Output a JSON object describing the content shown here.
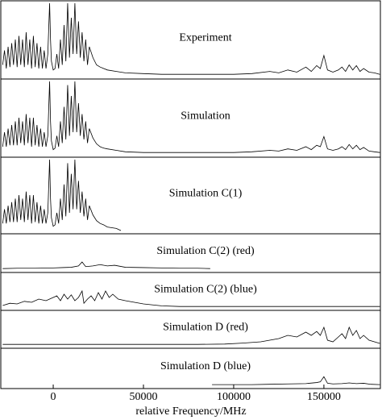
{
  "chart_data": [
    {
      "type": "line",
      "title": "Experiment",
      "color": "#000000",
      "xlim": [
        -28600,
        181300
      ],
      "ylim": [
        0,
        1
      ],
      "x": [
        -28000,
        -27000,
        -26000,
        -25000,
        -24000,
        -23000,
        -22000,
        -21000,
        -20000,
        -19000,
        -18000,
        -17000,
        -16000,
        -15000,
        -14000,
        -13000,
        -12000,
        -11000,
        -10000,
        -9000,
        -8000,
        -7000,
        -6000,
        -5000,
        -4000,
        -3000,
        -2000,
        -1500,
        -1000,
        0,
        1000,
        2000,
        3000,
        4000,
        5000,
        6000,
        7000,
        8000,
        9000,
        10000,
        11000,
        12000,
        13000,
        14000,
        15000,
        16000,
        17000,
        18000,
        19000,
        20000,
        22000,
        24000,
        26000,
        28000,
        30000,
        35000,
        40000,
        50000,
        60000,
        80000,
        100000,
        110000,
        120000,
        125000,
        130000,
        135000,
        140000,
        143000,
        146000,
        148000,
        150000,
        152000,
        155000,
        158000,
        160000,
        162000,
        164000,
        166000,
        168000,
        170000,
        172000,
        175000,
        178000,
        181000
      ],
      "values": [
        0.15,
        0.35,
        0.1,
        0.4,
        0.12,
        0.45,
        0.15,
        0.5,
        0.12,
        0.55,
        0.15,
        0.5,
        0.12,
        0.6,
        0.15,
        0.5,
        0.1,
        0.55,
        0.12,
        0.45,
        0.1,
        0.4,
        0.1,
        0.35,
        0.1,
        0.3,
        1.0,
        0.5,
        0.2,
        0.08,
        0.1,
        0.3,
        0.1,
        0.5,
        0.15,
        0.7,
        0.2,
        1.0,
        0.25,
        0.8,
        0.3,
        1.0,
        0.3,
        0.75,
        0.25,
        0.6,
        0.2,
        0.5,
        0.15,
        0.4,
        0.25,
        0.15,
        0.12,
        0.1,
        0.08,
        0.06,
        0.04,
        0.03,
        0.02,
        0.02,
        0.02,
        0.03,
        0.06,
        0.04,
        0.08,
        0.05,
        0.12,
        0.06,
        0.14,
        0.1,
        0.28,
        0.08,
        0.05,
        0.08,
        0.12,
        0.06,
        0.15,
        0.08,
        0.14,
        0.06,
        0.1,
        0.05,
        0.04,
        0.02
      ]
    },
    {
      "type": "line",
      "title": "Simulation",
      "color": "#000000",
      "xlim": [
        -28600,
        181300
      ],
      "ylim": [
        0,
        1
      ],
      "x": [
        -28000,
        -27000,
        -26000,
        -25000,
        -24000,
        -23000,
        -22000,
        -21000,
        -20000,
        -19000,
        -18000,
        -17000,
        -16000,
        -15000,
        -14000,
        -13000,
        -12000,
        -11000,
        -10000,
        -9000,
        -8000,
        -7000,
        -6000,
        -5000,
        -4000,
        -3000,
        -2000,
        -1500,
        -1000,
        0,
        1000,
        2000,
        3000,
        4000,
        5000,
        6000,
        7000,
        8000,
        9000,
        10000,
        11000,
        12000,
        13000,
        14000,
        15000,
        16000,
        17000,
        18000,
        19000,
        20000,
        22000,
        24000,
        26000,
        28000,
        30000,
        35000,
        40000,
        50000,
        60000,
        80000,
        100000,
        110000,
        120000,
        125000,
        130000,
        135000,
        140000,
        143000,
        146000,
        148000,
        150000,
        152000,
        155000,
        158000,
        160000,
        162000,
        164000,
        166000,
        168000,
        170000,
        172000,
        175000,
        178000,
        181000
      ],
      "values": [
        0.1,
        0.3,
        0.1,
        0.35,
        0.12,
        0.4,
        0.12,
        0.45,
        0.12,
        0.5,
        0.15,
        0.45,
        0.12,
        0.55,
        0.15,
        0.5,
        0.1,
        0.5,
        0.12,
        0.4,
        0.1,
        0.35,
        0.1,
        0.3,
        0.1,
        0.25,
        1.0,
        0.45,
        0.18,
        0.06,
        0.08,
        0.25,
        0.1,
        0.45,
        0.15,
        0.65,
        0.2,
        0.95,
        0.25,
        0.8,
        0.3,
        1.0,
        0.3,
        0.7,
        0.25,
        0.55,
        0.2,
        0.45,
        0.15,
        0.35,
        0.22,
        0.14,
        0.1,
        0.08,
        0.07,
        0.05,
        0.03,
        0.02,
        0.02,
        0.02,
        0.02,
        0.03,
        0.05,
        0.04,
        0.07,
        0.05,
        0.1,
        0.06,
        0.12,
        0.1,
        0.24,
        0.07,
        0.05,
        0.07,
        0.1,
        0.06,
        0.13,
        0.07,
        0.12,
        0.06,
        0.09,
        0.04,
        0.03,
        0.02
      ]
    },
    {
      "type": "line",
      "title": "Simulation C(1)",
      "color": "#000000",
      "xlim": [
        -28600,
        181300
      ],
      "ylim": [
        0,
        1
      ],
      "x": [
        -28000,
        -27000,
        -26000,
        -25000,
        -24000,
        -23000,
        -22000,
        -21000,
        -20000,
        -19000,
        -18000,
        -17000,
        -16000,
        -15000,
        -14000,
        -13000,
        -12000,
        -11000,
        -10000,
        -9000,
        -8000,
        -7000,
        -6000,
        -5000,
        -4000,
        -3000,
        -2000,
        -1500,
        -1000,
        0,
        1000,
        2000,
        3000,
        4000,
        5000,
        6000,
        7000,
        8000,
        9000,
        10000,
        11000,
        12000,
        13000,
        14000,
        15000,
        16000,
        17000,
        18000,
        19000,
        20000,
        22000,
        24000,
        26000,
        28000,
        30000,
        35000,
        37500
      ],
      "values": [
        0.1,
        0.3,
        0.1,
        0.35,
        0.12,
        0.4,
        0.12,
        0.45,
        0.12,
        0.5,
        0.15,
        0.45,
        0.12,
        0.55,
        0.15,
        0.5,
        0.1,
        0.5,
        0.12,
        0.4,
        0.1,
        0.35,
        0.1,
        0.3,
        0.1,
        0.25,
        1.0,
        0.45,
        0.18,
        0.06,
        0.08,
        0.25,
        0.1,
        0.45,
        0.15,
        0.65,
        0.2,
        0.95,
        0.25,
        0.8,
        0.3,
        1.0,
        0.3,
        0.7,
        0.25,
        0.55,
        0.2,
        0.45,
        0.15,
        0.35,
        0.22,
        0.14,
        0.1,
        0.08,
        0.05,
        0.03,
        0.0
      ]
    },
    {
      "type": "line",
      "title": "Simulation C(2) (red)",
      "color": "#000000",
      "xlim": [
        -28600,
        181300
      ],
      "ylim": [
        0,
        1
      ],
      "x": [
        -28000,
        -20000,
        -10000,
        0,
        5000,
        10000,
        14000,
        16000,
        18000,
        22000,
        26000,
        30000,
        34000,
        40000,
        50000,
        60000,
        70000,
        80000,
        87000
      ],
      "values": [
        0.02,
        0.03,
        0.03,
        0.04,
        0.05,
        0.06,
        0.1,
        0.22,
        0.08,
        0.1,
        0.14,
        0.1,
        0.12,
        0.06,
        0.05,
        0.04,
        0.03,
        0.03,
        0.02
      ]
    },
    {
      "type": "line",
      "title": "Simulation C(2) (blue)",
      "color": "#000000",
      "xlim": [
        -28600,
        181300
      ],
      "ylim": [
        0,
        1
      ],
      "x": [
        -28000,
        -24000,
        -20000,
        -16000,
        -12000,
        -8000,
        -4000,
        0,
        2000,
        4000,
        6000,
        8000,
        10000,
        12000,
        14000,
        16000,
        17000,
        19000,
        21000,
        23000,
        25000,
        27000,
        29000,
        31000,
        33000,
        36000,
        40000,
        45000,
        50000,
        60000,
        70000,
        100000,
        140000,
        181000
      ],
      "values": [
        0.05,
        0.12,
        0.1,
        0.18,
        0.15,
        0.25,
        0.2,
        0.3,
        0.35,
        0.2,
        0.4,
        0.25,
        0.38,
        0.2,
        0.3,
        0.5,
        0.12,
        0.25,
        0.35,
        0.2,
        0.45,
        0.25,
        0.5,
        0.3,
        0.4,
        0.25,
        0.2,
        0.15,
        0.1,
        0.04,
        0.02,
        0.02,
        0.02,
        0.02
      ]
    },
    {
      "type": "line",
      "title": "Simulation D (red)",
      "color": "#000000",
      "xlim": [
        -28600,
        181300
      ],
      "ylim": [
        0,
        1
      ],
      "x": [
        -28000,
        0,
        50000,
        80000,
        95000,
        105000,
        115000,
        120000,
        125000,
        130000,
        135000,
        140000,
        143000,
        146000,
        148000,
        150000,
        152000,
        155000,
        158000,
        160000,
        162000,
        164000,
        166000,
        168000,
        170000,
        172000,
        175000,
        178000,
        181000
      ],
      "values": [
        0.02,
        0.02,
        0.02,
        0.02,
        0.03,
        0.06,
        0.1,
        0.15,
        0.2,
        0.3,
        0.25,
        0.4,
        0.3,
        0.42,
        0.3,
        0.55,
        0.15,
        0.1,
        0.25,
        0.35,
        0.2,
        0.55,
        0.3,
        0.45,
        0.2,
        0.3,
        0.15,
        0.1,
        0.05
      ]
    },
    {
      "type": "line",
      "title": "Simulation D (blue)",
      "color": "#000000",
      "xlim": [
        -28600,
        181300
      ],
      "ylim": [
        0,
        1
      ],
      "x": [
        88000,
        100000,
        110000,
        120000,
        130000,
        140000,
        146000,
        148000,
        150000,
        152000,
        155000,
        160000,
        164000,
        168000,
        172000,
        176000,
        181000
      ],
      "values": [
        0.02,
        0.02,
        0.02,
        0.03,
        0.04,
        0.05,
        0.08,
        0.1,
        0.25,
        0.06,
        0.04,
        0.05,
        0.07,
        0.05,
        0.06,
        0.03,
        0.02
      ],
      "xticks": [
        0,
        50000,
        100000,
        150000
      ],
      "xlabel": "relative Frequency/MHz"
    }
  ]
}
